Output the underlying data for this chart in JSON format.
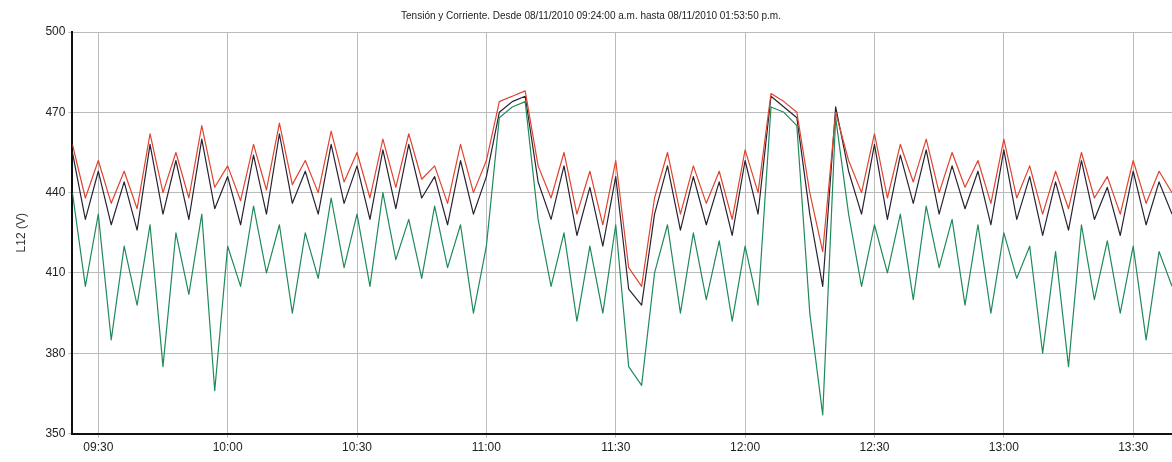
{
  "chart_data": {
    "type": "line",
    "title": "Tensión y Corriente. Desde 08/11/2010 09:24:00 a.m. hasta 08/11/2010 01:53:50 p.m.",
    "ylabel": "L12 (V)",
    "x": [
      9.4,
      9.45,
      9.5,
      9.55,
      9.6,
      9.65,
      9.7,
      9.75,
      9.8,
      9.85,
      9.9,
      9.95,
      10.0,
      10.05,
      10.1,
      10.15,
      10.2,
      10.25,
      10.3,
      10.35,
      10.4,
      10.45,
      10.5,
      10.55,
      10.6,
      10.65,
      10.7,
      10.75,
      10.8,
      10.85,
      10.9,
      10.95,
      11.0,
      11.05,
      11.1,
      11.15,
      11.2,
      11.25,
      11.3,
      11.35,
      11.4,
      11.45,
      11.5,
      11.55,
      11.6,
      11.65,
      11.7,
      11.75,
      11.8,
      11.85,
      11.9,
      11.95,
      12.0,
      12.05,
      12.1,
      12.15,
      12.2,
      12.25,
      12.3,
      12.35,
      12.4,
      12.45,
      12.5,
      12.55,
      12.6,
      12.65,
      12.7,
      12.75,
      12.8,
      12.85,
      12.9,
      12.95,
      13.0,
      13.05,
      13.1,
      13.15,
      13.2,
      13.25,
      13.3,
      13.35,
      13.4,
      13.45,
      13.5,
      13.55,
      13.6,
      13.65
    ],
    "series": [
      {
        "color": "#1f8a5a",
        "values": [
          440,
          405,
          432,
          385,
          420,
          398,
          428,
          375,
          425,
          402,
          432,
          366,
          420,
          405,
          435,
          410,
          428,
          395,
          425,
          408,
          438,
          412,
          432,
          405,
          440,
          415,
          430,
          408,
          435,
          412,
          428,
          395,
          420,
          468,
          472,
          474,
          430,
          405,
          425,
          392,
          420,
          395,
          428,
          375,
          368,
          410,
          428,
          395,
          425,
          400,
          422,
          392,
          420,
          398,
          472,
          470,
          465,
          395,
          357,
          468,
          432,
          405,
          428,
          410,
          432,
          400,
          435,
          412,
          430,
          398,
          428,
          395,
          425,
          408,
          420,
          380,
          418,
          375,
          428,
          400,
          422,
          395,
          420,
          385,
          418,
          405
        ]
      },
      {
        "color": "#e0442e",
        "values": [
          458,
          438,
          452,
          436,
          448,
          434,
          462,
          440,
          455,
          438,
          465,
          442,
          450,
          437,
          458,
          441,
          466,
          443,
          452,
          440,
          463,
          444,
          455,
          438,
          460,
          442,
          462,
          445,
          450,
          436,
          458,
          440,
          452,
          474,
          476,
          478,
          450,
          438,
          455,
          432,
          448,
          428,
          452,
          412,
          405,
          438,
          455,
          432,
          450,
          436,
          448,
          430,
          456,
          440,
          477,
          474,
          470,
          440,
          418,
          470,
          452,
          440,
          462,
          438,
          458,
          444,
          460,
          440,
          455,
          442,
          452,
          436,
          460,
          438,
          450,
          432,
          448,
          434,
          455,
          438,
          446,
          432,
          452,
          436,
          448,
          440
        ]
      },
      {
        "color": "#2a2233",
        "values": [
          455,
          430,
          448,
          428,
          444,
          426,
          458,
          432,
          452,
          430,
          460,
          434,
          446,
          428,
          454,
          432,
          462,
          436,
          448,
          432,
          458,
          436,
          450,
          430,
          456,
          434,
          458,
          438,
          446,
          428,
          452,
          432,
          446,
          470,
          474,
          476,
          444,
          430,
          450,
          424,
          442,
          420,
          446,
          404,
          398,
          432,
          450,
          426,
          446,
          428,
          444,
          424,
          452,
          432,
          476,
          472,
          468,
          432,
          405,
          472,
          448,
          432,
          458,
          430,
          454,
          436,
          456,
          432,
          450,
          434,
          448,
          428,
          456,
          430,
          446,
          424,
          444,
          426,
          452,
          430,
          442,
          424,
          448,
          428,
          444,
          432
        ]
      }
    ],
    "xlim": [
      9.4,
      13.65
    ],
    "xticks": [
      {
        "value": 9.5,
        "label": "09:30"
      },
      {
        "value": 10,
        "label": "10:00"
      },
      {
        "value": 10.5,
        "label": "10:30"
      },
      {
        "value": 11,
        "label": "11:00"
      },
      {
        "value": 11.5,
        "label": "11:30"
      },
      {
        "value": 12,
        "label": "12:00"
      },
      {
        "value": 12.5,
        "label": "12:30"
      },
      {
        "value": 13,
        "label": "13:00"
      },
      {
        "value": 13.5,
        "label": "13:30"
      }
    ],
    "ylim": [
      350,
      500
    ],
    "yticks": [
      350,
      380,
      410,
      440,
      470,
      500
    ],
    "grid": true,
    "legend": false,
    "marker": "none",
    "line_style": "solid"
  }
}
